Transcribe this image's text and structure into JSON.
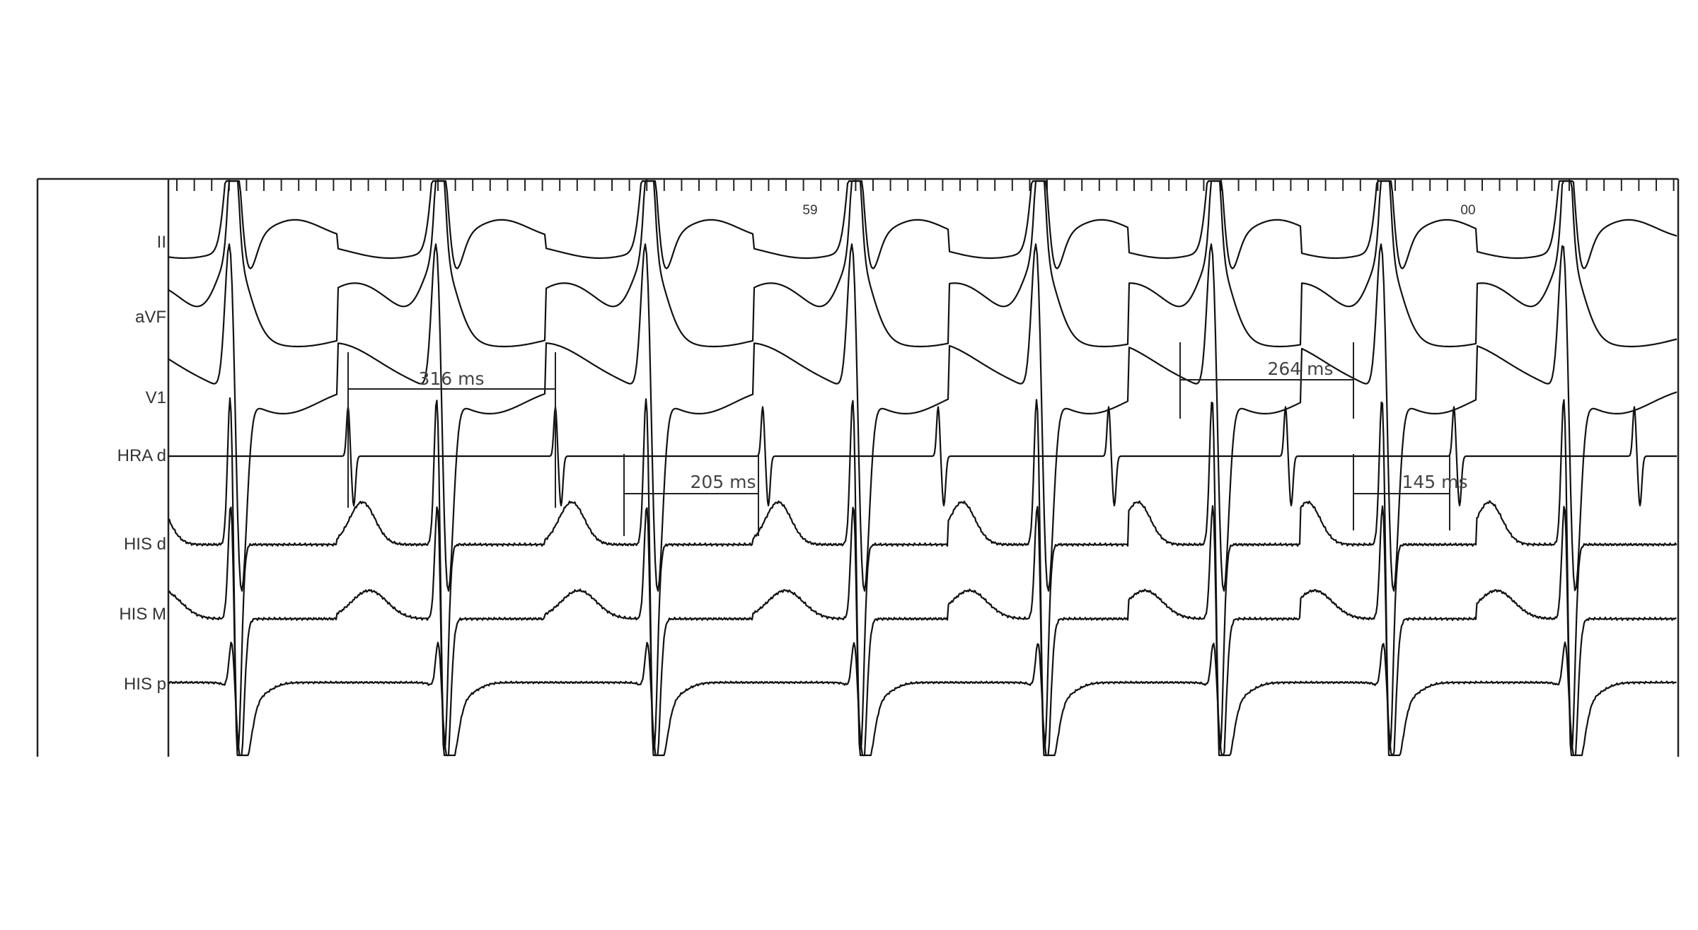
{
  "recording": {
    "leads": [
      "II",
      "aVF",
      "V1",
      "HRA d",
      "HIS d",
      "HIS M",
      "HIS p"
    ],
    "time_marks": [
      "59",
      "00"
    ],
    "intervals": [
      "316 ms",
      "205 ms",
      "264 ms",
      "145 ms"
    ]
  },
  "colors": {
    "trace": "#111111",
    "label": "#333333",
    "frame": "#222222",
    "background": "#ffffff"
  }
}
